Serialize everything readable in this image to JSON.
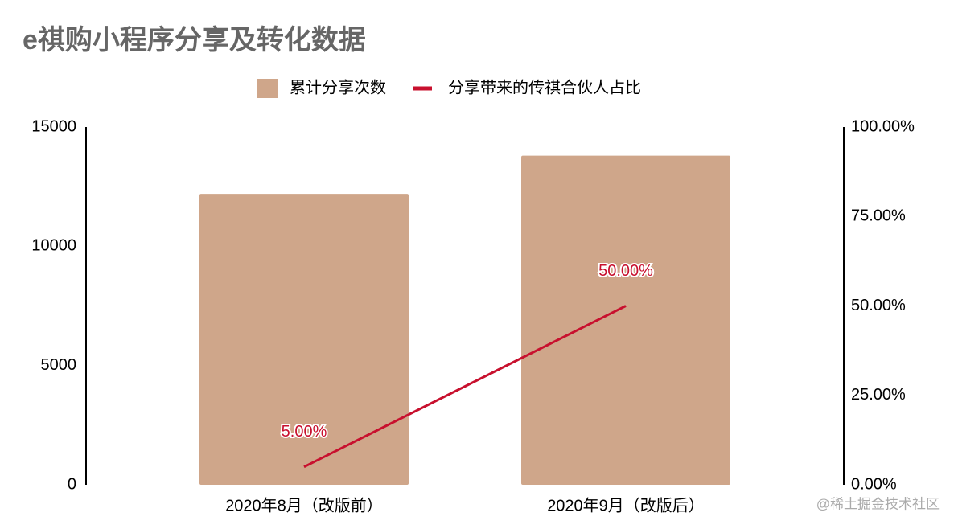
{
  "chart_data": {
    "type": "combo",
    "title": "e祺购小程序分享及转化数据",
    "categories": [
      "2020年8月（改版前）",
      "2020年9月（改版后）"
    ],
    "series": [
      {
        "name": "累计分享次数",
        "type": "bar",
        "color": "#cfa68a",
        "values": [
          12200,
          13800
        ]
      },
      {
        "name": "分享带来的传祺合伙人占比",
        "type": "line",
        "axis": "y2",
        "color": "#c8102e",
        "values": [
          5,
          50
        ],
        "value_labels": [
          "5.00%",
          "50.00%"
        ]
      }
    ],
    "ylim": [
      0,
      15000
    ],
    "yticks": [
      0,
      5000,
      10000,
      15000
    ],
    "y2lim": [
      0,
      100
    ],
    "y2ticks": [
      {
        "value": 0,
        "label": "0.00%"
      },
      {
        "value": 25,
        "label": "25.00%"
      },
      {
        "value": 50,
        "label": "50.00%"
      },
      {
        "value": 75,
        "label": "75.00%"
      },
      {
        "value": 100,
        "label": "100.00%"
      }
    ],
    "legend": "top",
    "watermark": "@稀土掘金技术社区"
  }
}
